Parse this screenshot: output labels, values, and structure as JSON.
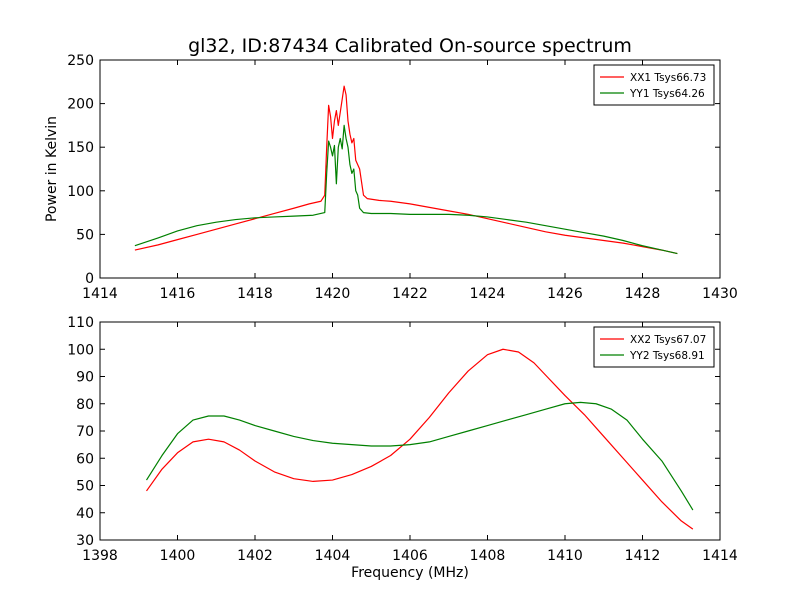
{
  "figure": {
    "title": "gl32, ID:87434 Calibrated On-source spectrum",
    "xlabel": "Frequency (MHz)"
  },
  "chart_data": [
    {
      "type": "line",
      "title": "gl32, ID:87434 Calibrated On-source spectrum",
      "xlabel": "",
      "ylabel": "Power in Kelvin",
      "xlim": [
        1414,
        1430
      ],
      "ylim": [
        0,
        250
      ],
      "xticks": [
        1414,
        1416,
        1418,
        1420,
        1422,
        1424,
        1426,
        1428,
        1430
      ],
      "yticks": [
        0,
        50,
        100,
        150,
        200,
        250
      ],
      "grid": false,
      "legend_position": "top-right",
      "series": [
        {
          "name": "XX1 Tsys66.73",
          "color": "#ff0000",
          "x": [
            1414.9,
            1415.5,
            1416.0,
            1416.5,
            1417.0,
            1417.5,
            1418.0,
            1418.5,
            1419.0,
            1419.4,
            1419.7,
            1419.8,
            1419.85,
            1419.9,
            1419.95,
            1420.0,
            1420.05,
            1420.1,
            1420.15,
            1420.2,
            1420.25,
            1420.3,
            1420.35,
            1420.4,
            1420.45,
            1420.5,
            1420.55,
            1420.6,
            1420.65,
            1420.7,
            1420.8,
            1420.9,
            1421.2,
            1421.5,
            1422.0,
            1422.5,
            1423.0,
            1423.5,
            1424.0,
            1424.5,
            1425.0,
            1425.5,
            1426.0,
            1426.5,
            1427.0,
            1427.5,
            1428.0,
            1428.5,
            1428.9
          ],
          "y": [
            32,
            38,
            44,
            50,
            56,
            62,
            68,
            74,
            80,
            85,
            88,
            95,
            150,
            198,
            185,
            160,
            180,
            192,
            175,
            190,
            205,
            220,
            210,
            180,
            165,
            155,
            160,
            135,
            130,
            125,
            95,
            91,
            89,
            88,
            85,
            81,
            77,
            73,
            68,
            63,
            58,
            53,
            49,
            46,
            43,
            40,
            36,
            32,
            28
          ]
        },
        {
          "name": "YY1 Tsys64.26",
          "color": "#008000",
          "x": [
            1414.9,
            1415.5,
            1416.0,
            1416.5,
            1417.0,
            1417.5,
            1418.0,
            1418.5,
            1419.0,
            1419.5,
            1419.8,
            1419.85,
            1419.9,
            1419.95,
            1420.0,
            1420.05,
            1420.1,
            1420.15,
            1420.2,
            1420.25,
            1420.3,
            1420.35,
            1420.4,
            1420.45,
            1420.5,
            1420.55,
            1420.6,
            1420.65,
            1420.7,
            1420.8,
            1421.0,
            1421.5,
            1422.0,
            1422.5,
            1423.0,
            1423.5,
            1424.0,
            1424.5,
            1425.0,
            1425.5,
            1426.0,
            1426.5,
            1427.0,
            1427.5,
            1428.0,
            1428.5,
            1428.9
          ],
          "y": [
            37,
            46,
            54,
            60,
            64,
            67,
            69,
            70,
            71,
            72,
            75,
            120,
            157,
            150,
            140,
            152,
            108,
            150,
            160,
            148,
            175,
            160,
            150,
            130,
            120,
            125,
            100,
            95,
            80,
            75,
            74,
            74,
            73,
            73,
            73,
            72,
            70,
            67,
            64,
            60,
            56,
            52,
            48,
            43,
            37,
            32,
            28
          ]
        }
      ]
    },
    {
      "type": "line",
      "title": "",
      "xlabel": "Frequency (MHz)",
      "ylabel": "",
      "xlim": [
        1398,
        1414
      ],
      "ylim": [
        30,
        110
      ],
      "xticks": [
        1398,
        1400,
        1402,
        1404,
        1406,
        1408,
        1410,
        1412,
        1414
      ],
      "yticks": [
        30,
        40,
        50,
        60,
        70,
        80,
        90,
        100,
        110
      ],
      "grid": false,
      "legend_position": "top-right",
      "series": [
        {
          "name": "XX2 Tsys67.07",
          "color": "#ff0000",
          "x": [
            1399.2,
            1399.6,
            1400.0,
            1400.4,
            1400.8,
            1401.2,
            1401.6,
            1402.0,
            1402.5,
            1403.0,
            1403.5,
            1404.0,
            1404.5,
            1405.0,
            1405.5,
            1406.0,
            1406.5,
            1407.0,
            1407.5,
            1408.0,
            1408.4,
            1408.8,
            1409.2,
            1409.6,
            1410.0,
            1410.5,
            1411.0,
            1411.5,
            1412.0,
            1412.5,
            1413.0,
            1413.3
          ],
          "y": [
            48,
            56,
            62,
            66,
            67,
            66,
            63,
            59,
            55,
            52.5,
            51.5,
            52,
            54,
            57,
            61,
            67,
            75,
            84,
            92,
            98,
            100,
            99,
            95,
            89,
            83,
            76,
            68,
            60,
            52,
            44,
            37,
            34
          ]
        },
        {
          "name": "YY2 Tsys68.91",
          "color": "#008000",
          "x": [
            1399.2,
            1399.6,
            1400.0,
            1400.4,
            1400.8,
            1401.2,
            1401.6,
            1402.0,
            1402.5,
            1403.0,
            1403.5,
            1404.0,
            1404.5,
            1405.0,
            1405.5,
            1406.0,
            1406.5,
            1407.0,
            1407.5,
            1408.0,
            1408.5,
            1409.0,
            1409.5,
            1410.0,
            1410.4,
            1410.8,
            1411.2,
            1411.6,
            1412.0,
            1412.5,
            1413.0,
            1413.3
          ],
          "y": [
            52,
            61,
            69,
            74,
            75.5,
            75.5,
            74,
            72,
            70,
            68,
            66.5,
            65.5,
            65,
            64.5,
            64.5,
            65,
            66,
            68,
            70,
            72,
            74,
            76,
            78,
            80,
            80.5,
            80,
            78,
            74,
            67,
            59,
            48,
            41
          ]
        }
      ]
    }
  ]
}
